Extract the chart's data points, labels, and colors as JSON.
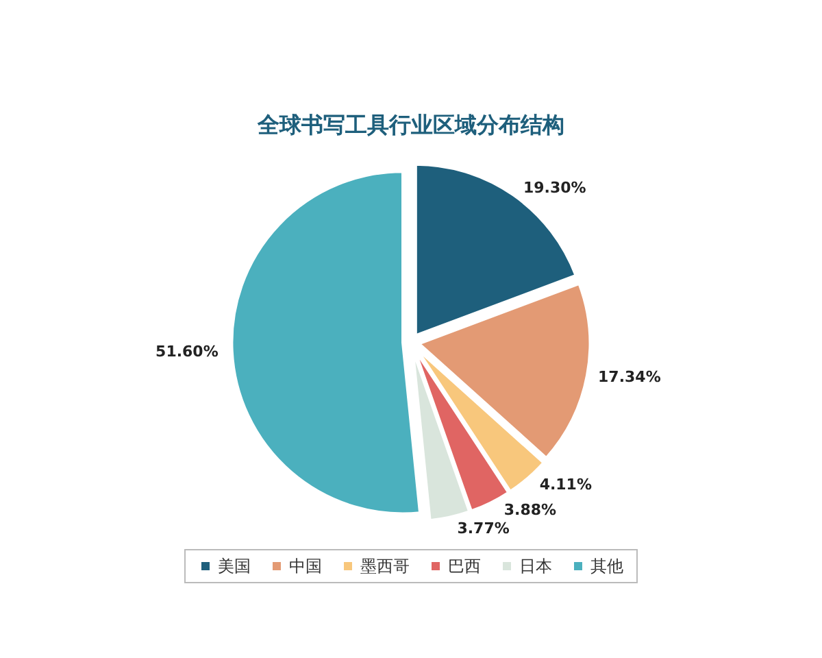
{
  "chart_data": {
    "type": "pie",
    "title": "全球书写工具行业区域分布结构",
    "categories": [
      "美国",
      "中国",
      "墨西哥",
      "巴西",
      "日本",
      "其他"
    ],
    "values": [
      19.3,
      17.34,
      4.11,
      3.88,
      3.77,
      51.6
    ],
    "value_labels": [
      "19.30%",
      "17.34%",
      "4.11%",
      "3.88%",
      "3.77%",
      "51.60%"
    ],
    "colors": [
      "#1e5f7c",
      "#e39a74",
      "#f8c77c",
      "#e06563",
      "#d9e5dc",
      "#4bb0be"
    ],
    "legend": "bottom"
  }
}
